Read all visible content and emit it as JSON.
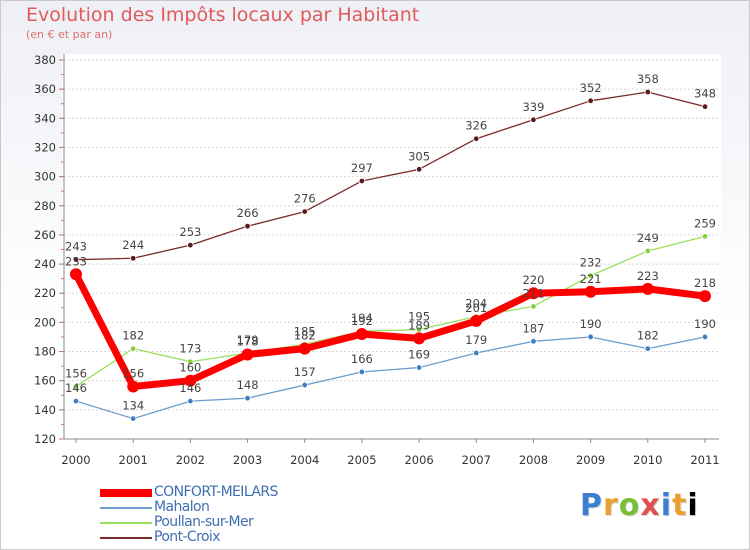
{
  "title": "Evolution des Impôts locaux par Habitant",
  "subtitle": "(en € et par an)",
  "logo": "Proxiti",
  "chart_data": {
    "type": "line",
    "title": "Evolution des Impôts locaux par Habitant",
    "ylabel": "(en € et par an)",
    "xlabel": "",
    "categories": [
      "2000",
      "2001",
      "2002",
      "2003",
      "2004",
      "2005",
      "2006",
      "2007",
      "2008",
      "2009",
      "2010",
      "2011"
    ],
    "ylim": [
      120,
      380
    ],
    "yticks": [
      120,
      140,
      160,
      180,
      200,
      220,
      240,
      260,
      280,
      300,
      320,
      340,
      360,
      380
    ],
    "series": [
      {
        "name": "CONFORT-MEILARS",
        "color": "#ff0000",
        "values": [
          233,
          156,
          160,
          178,
          182,
          192,
          189,
          201,
          220,
          221,
          223,
          218
        ]
      },
      {
        "name": "Mahalon",
        "color": "#6d9ecf",
        "values": [
          146,
          134,
          146,
          148,
          157,
          166,
          169,
          179,
          187,
          190,
          182,
          190
        ]
      },
      {
        "name": "Poullan-sur-Mer",
        "color": "#99e05c",
        "values": [
          156,
          182,
          173,
          179,
          185,
          194,
          195,
          204,
          211,
          232,
          249,
          259
        ]
      },
      {
        "name": "Pont-Croix",
        "color": "#7a2a2a",
        "values": [
          243,
          244,
          253,
          266,
          276,
          297,
          305,
          326,
          339,
          352,
          358,
          348
        ]
      }
    ]
  }
}
